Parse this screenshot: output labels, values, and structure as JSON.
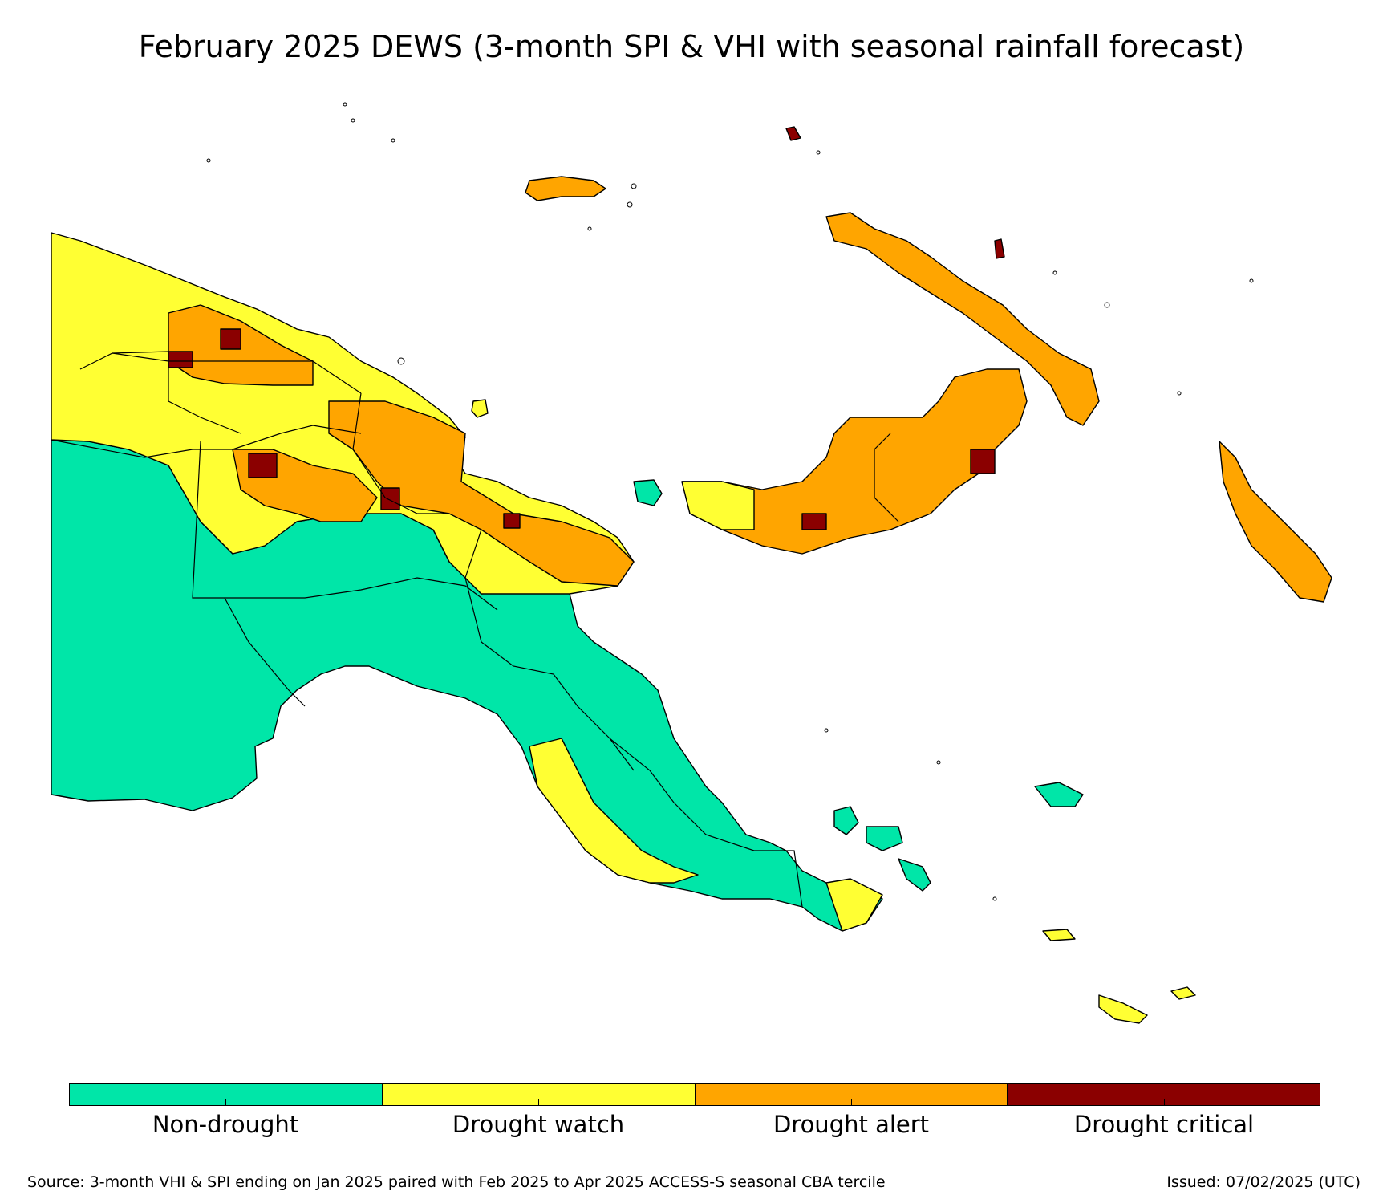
{
  "title": "February 2025 DEWS (3-month SPI & VHI with seasonal rainfall forecast)",
  "colors": {
    "non_drought": "#00E6A8",
    "drought_watch": "#FFFF33",
    "drought_alert": "#FFA500",
    "drought_critical": "#8B0000"
  },
  "legend": [
    {
      "label": "Non-drought",
      "color": "#00E6A8"
    },
    {
      "label": "Drought watch",
      "color": "#FFFF33"
    },
    {
      "label": "Drought alert",
      "color": "#FFA500"
    },
    {
      "label": "Drought critical",
      "color": "#8B0000"
    }
  ],
  "footer": {
    "source": "Source: 3-month VHI & SPI ending on Jan 2025 paired with Feb 2025 to Apr 2025 ACCESS-S seasonal CBA tercile",
    "issued": "Issued: 07/02/2025 (UTC)"
  }
}
